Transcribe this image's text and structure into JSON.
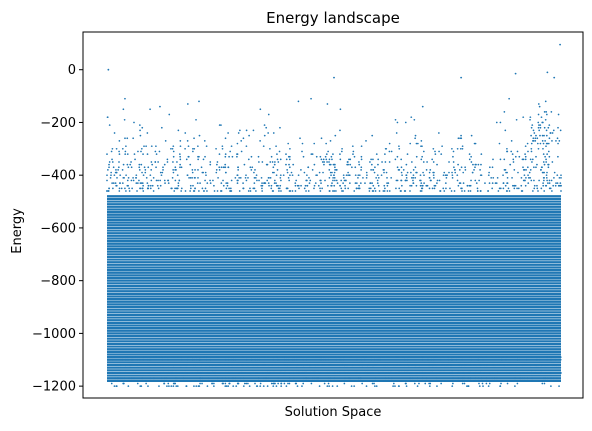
{
  "chart_data": {
    "type": "scatter",
    "title": "Energy landscape",
    "xlabel": "Solution Space",
    "ylabel": "Energy",
    "ylim": [
      -1245,
      143
    ],
    "xlim": [
      0,
      1
    ],
    "yticks": [
      0,
      -200,
      -400,
      -600,
      -800,
      -1000,
      -1200
    ],
    "ytick_labels": [
      "0",
      "−200",
      "−400",
      "−600",
      "−800",
      "−1000",
      "−1200"
    ],
    "x_ticks_visible": false,
    "grid": false,
    "color": "#1f77b4",
    "series": [
      {
        "marker_size": 1,
        "dense_band": {
          "y_min": -1180,
          "y_max": -480,
          "level_step": 10
        },
        "upper_scatter": {
          "y_min": -460,
          "y_max": -110,
          "level_step": 10
        },
        "lower_scatter": {
          "y_min": -1200,
          "y_max": -1090
        },
        "outliers": [
          {
            "x": 0.003,
            "y": 0
          },
          {
            "x": 0.998,
            "y": 95
          },
          {
            "x": 0.9,
            "y": -15
          },
          {
            "x": 0.97,
            "y": -10
          },
          {
            "x": 0.5,
            "y": -30
          },
          {
            "x": 0.78,
            "y": -30
          },
          {
            "x": 0.985,
            "y": -30
          }
        ]
      }
    ]
  }
}
